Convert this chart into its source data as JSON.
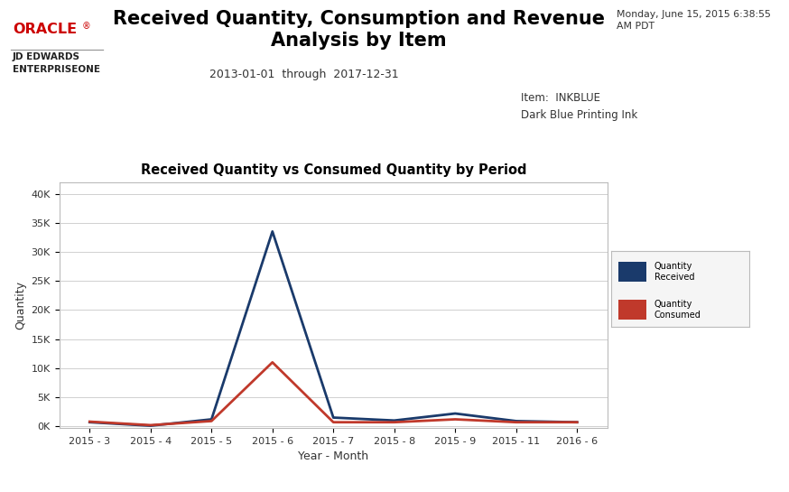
{
  "title_main": "Received Quantity, Consumption and Revenue\nAnalysis by Item",
  "date_label": "Monday, June 15, 2015 6:38:55\nAM PDT",
  "date_range": "2013-01-01  through  2017-12-31",
  "item_label": "Item:  INKBLUE",
  "item_desc": "Dark Blue Printing Ink",
  "chart_title": "Received Quantity vs Consumed Quantity by Period",
  "xlabel": "Year - Month",
  "ylabel": "Quantity",
  "x_labels": [
    "2015 - 3",
    "2015 - 4",
    "2015 - 5",
    "2015 - 6",
    "2015 - 7",
    "2015 - 8",
    "2015 - 9",
    "2015 - 11",
    "2016 - 6"
  ],
  "qty_received": [
    700,
    100,
    1200,
    33500,
    1500,
    1000,
    2200,
    900,
    700
  ],
  "qty_consumed": [
    800,
    200,
    900,
    11000,
    700,
    700,
    1200,
    700,
    700
  ],
  "color_received": "#1a3a6b",
  "color_consumed": "#c0392b",
  "legend_received": "Quantity\nReceived",
  "legend_consumed": "Quantity\nConsumed",
  "ylim_max": 42000,
  "ytick_values": [
    0,
    5000,
    10000,
    15000,
    20000,
    25000,
    30000,
    35000,
    40000
  ],
  "ytick_labels": [
    "0K",
    "5K",
    "10K",
    "15K",
    "20K",
    "25K",
    "30K",
    "35K",
    "40K"
  ],
  "bg_color": "#ffffff",
  "plot_bg_color": "#ffffff",
  "grid_color": "#d0d0d0",
  "oracle_red": "#cc0000",
  "header_line_color": "#999999"
}
